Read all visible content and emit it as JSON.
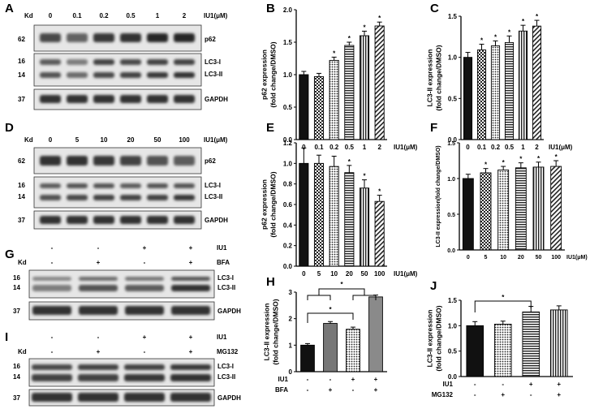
{
  "figure": {
    "panels": {
      "A": {
        "label": "A",
        "kd": "Kd",
        "unit": "IU1(μM)",
        "lanes": [
          "0",
          "0.1",
          "0.2",
          "0.5",
          "1",
          "2"
        ],
        "bands": [
          "p62",
          "LC3-I",
          "LC3-II",
          "GAPDH"
        ],
        "mw": [
          "62",
          "16",
          "14",
          "37"
        ]
      },
      "D": {
        "label": "D",
        "kd": "Kd",
        "unit": "IU1(μM)",
        "lanes": [
          "0",
          "5",
          "10",
          "20",
          "50",
          "100"
        ],
        "bands": [
          "p62",
          "LC3-I",
          "LC3-II",
          "GAPDH"
        ],
        "mw": [
          "62",
          "16",
          "14",
          "37"
        ]
      },
      "G": {
        "label": "G",
        "kd": "Kd",
        "rows": [
          {
            "name": "IU1",
            "signs": [
              "-",
              "-",
              "+",
              "+"
            ]
          },
          {
            "name": "BFA",
            "signs": [
              "-",
              "+",
              "-",
              "+"
            ]
          }
        ],
        "bands": [
          "LC3-I",
          "LC3-II",
          "GAPDH"
        ],
        "mw": [
          "16",
          "14",
          "37"
        ]
      },
      "I": {
        "label": "I",
        "kd": "Kd",
        "rows": [
          {
            "name": "IU1",
            "signs": [
              "-",
              "-",
              "+",
              "+"
            ]
          },
          {
            "name": "MG132",
            "signs": [
              "-",
              "+",
              "-",
              "+"
            ]
          }
        ],
        "bands": [
          "LC3-I",
          "LC3-II",
          "GAPDH"
        ],
        "mw": [
          "16",
          "14",
          "37"
        ]
      }
    }
  },
  "chart_data": [
    {
      "panel": "B",
      "type": "bar",
      "categories": [
        "0",
        "0.1",
        "0.2",
        "0.5",
        "1",
        "2"
      ],
      "values": [
        1.0,
        0.97,
        1.22,
        1.45,
        1.6,
        1.75
      ],
      "errors": [
        0.05,
        0.05,
        0.05,
        0.05,
        0.07,
        0.06
      ],
      "sig": [
        false,
        false,
        true,
        true,
        true,
        true
      ],
      "ylabel": "p62 expression\n(fold change/DMSO)",
      "xlabel": "IU1(μM)",
      "ylim": [
        0,
        2.0
      ],
      "yticks": [
        "0.0",
        "0.5",
        "1.0",
        "1.5",
        "2.0"
      ]
    },
    {
      "panel": "C",
      "type": "bar",
      "categories": [
        "0",
        "0.1",
        "0.2",
        "0.5",
        "1",
        "2"
      ],
      "values": [
        1.0,
        1.09,
        1.14,
        1.18,
        1.32,
        1.38
      ],
      "errors": [
        0.06,
        0.07,
        0.06,
        0.08,
        0.07,
        0.07
      ],
      "sig": [
        false,
        true,
        true,
        true,
        true,
        true
      ],
      "ylabel": "LC3-II expression\n(fold change/DMSO)",
      "xlabel": "IU1(μM)",
      "ylim": [
        0,
        1.5
      ],
      "yticks": [
        "0.0",
        "0.5",
        "1.0",
        "1.5"
      ]
    },
    {
      "panel": "E",
      "type": "bar",
      "categories": [
        "0",
        "5",
        "10",
        "20",
        "50",
        "100"
      ],
      "values": [
        1.0,
        1.0,
        0.97,
        0.91,
        0.76,
        0.63
      ],
      "errors": [
        0.15,
        0.08,
        0.1,
        0.07,
        0.08,
        0.06
      ],
      "sig": [
        false,
        false,
        false,
        true,
        true,
        true
      ],
      "ylabel": "p62 expression\n(fold change/DMSO)",
      "xlabel": "IU1(μM)",
      "ylim": [
        0,
        1.2
      ],
      "yticks": [
        "0.0",
        "0.2",
        "0.4",
        "0.6",
        "0.8",
        "1.0",
        "1.2"
      ]
    },
    {
      "panel": "F",
      "type": "bar",
      "categories": [
        "0",
        "5",
        "10",
        "20",
        "50",
        "100"
      ],
      "values": [
        1.0,
        1.08,
        1.12,
        1.15,
        1.16,
        1.17
      ],
      "errors": [
        0.06,
        0.06,
        0.05,
        0.07,
        0.07,
        0.08
      ],
      "sig": [
        false,
        true,
        true,
        true,
        true,
        true
      ],
      "ylabel": "LC3-II expression(fold change/DMSO)",
      "xlabel": "IU1(μM)",
      "ylim": [
        0,
        1.5
      ],
      "yticks": [
        "0.0",
        "0.5",
        "1.0",
        "1.5"
      ]
    },
    {
      "panel": "H",
      "type": "bar",
      "categories": [
        "1",
        "2",
        "3",
        "4"
      ],
      "values": [
        1.0,
        1.82,
        1.6,
        2.82
      ],
      "errors": [
        0.06,
        0.07,
        0.08,
        0.07
      ],
      "ylabel": "LC3-II expression\n(fold change/DMSO)",
      "ylim": [
        0,
        3.0
      ],
      "yticks": [
        "0",
        "1",
        "2",
        "3"
      ],
      "treatments": [
        {
          "name": "IU1",
          "signs": [
            "-",
            "-",
            "+",
            "+"
          ]
        },
        {
          "name": "BFA",
          "signs": [
            "-",
            "+",
            "-",
            "+"
          ]
        }
      ],
      "sig_label": "*"
    },
    {
      "panel": "J",
      "type": "bar",
      "categories": [
        "1",
        "2",
        "3",
        "4"
      ],
      "values": [
        1.0,
        1.03,
        1.27,
        1.31
      ],
      "errors": [
        0.08,
        0.06,
        0.11,
        0.08
      ],
      "ylabel": "LC3-II expression\n(fold change/DMSO)",
      "ylim": [
        0,
        1.5
      ],
      "yticks": [
        "0.0",
        "0.5",
        "1.0",
        "1.5"
      ],
      "treatments": [
        {
          "name": "IU1",
          "signs": [
            "-",
            "-",
            "+",
            "+"
          ]
        },
        {
          "name": "MG132",
          "signs": [
            "-",
            "+",
            "-",
            "+"
          ]
        }
      ],
      "sig_label": "*"
    }
  ]
}
